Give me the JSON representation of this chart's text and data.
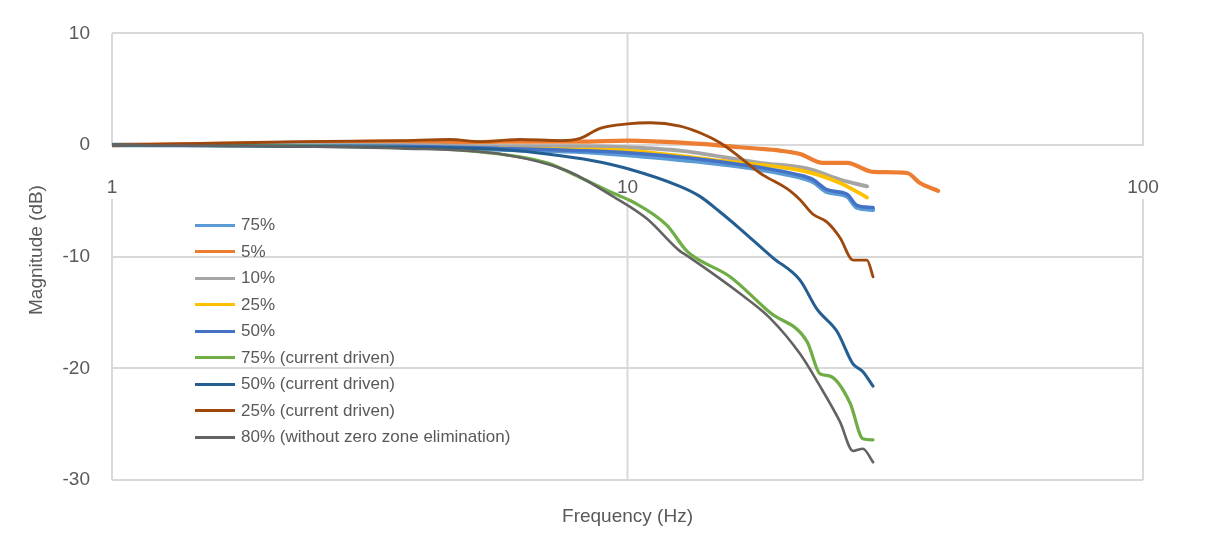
{
  "chart_data": {
    "type": "line",
    "xlabel": "Frequency (Hz)",
    "ylabel": "Magnitude (dB)",
    "log": "x",
    "xlim": [
      1,
      100
    ],
    "xticks": [
      1,
      10,
      100
    ],
    "ylim": [
      -30,
      10
    ],
    "yticks": [
      -30,
      -20,
      -10,
      0,
      10
    ],
    "grid": true,
    "legend": "bottom left",
    "line_style": "solid",
    "series": [
      {
        "name": "75%",
        "color": "#5b9bd5",
        "x": [
          1,
          3.62,
          5.66,
          8.09,
          10,
          15.12,
          21.61,
          22.9,
          24.38,
          26.66,
          27.87,
          29.94
        ],
        "values": [
          0,
          -0.1,
          -0.4,
          -0.6,
          -0.9,
          -1.7,
          -2.9,
          -3.3,
          -4.2,
          -4.6,
          -5.6,
          -5.8
        ]
      },
      {
        "name": "5%",
        "color": "#ed7d31",
        "x": [
          1,
          2.32,
          3.62,
          4.53,
          5.66,
          8.09,
          10,
          11.54,
          13.82,
          16.53,
          19.76,
          21.61,
          23.94,
          26.66,
          29.94,
          34.85,
          36.93,
          40.03
        ],
        "values": [
          0,
          0.2,
          0.3,
          0.2,
          0.3,
          0.3,
          0.4,
          0.3,
          0.1,
          -0.2,
          -0.5,
          -0.8,
          -1.6,
          -1.6,
          -2.4,
          -2.5,
          -3.4,
          -4.1
        ]
      },
      {
        "name": "10%",
        "color": "#a5a5a5",
        "x": [
          1,
          3.62,
          5.66,
          8.09,
          10,
          12.64,
          18.07,
          22.3,
          25.84,
          29.15
        ],
        "values": [
          0,
          0,
          -0.1,
          -0.1,
          -0.2,
          -0.5,
          -1.6,
          -2.1,
          -3.1,
          -3.7
        ]
      },
      {
        "name": "25%",
        "color": "#ffc000",
        "x": [
          5.66,
          8.09,
          10,
          15.12,
          22.3,
          25.84,
          29.15
        ],
        "values": [
          -0.3,
          -0.4,
          -0.5,
          -1.4,
          -2.4,
          -3.4,
          -4.7
        ]
      },
      {
        "name": "50%",
        "color": "#4472c4",
        "x": [
          1,
          3.62,
          5.66,
          8.09,
          10,
          15.12,
          21.61,
          22.9,
          24.38,
          26.66,
          27.87,
          29.94
        ],
        "values": [
          0,
          -0.1,
          -0.3,
          -0.5,
          -0.7,
          -1.5,
          -2.7,
          -3.1,
          -4.0,
          -4.4,
          -5.4,
          -5.6
        ]
      },
      {
        "name": "75% (current driven)",
        "color": "#70ad47",
        "x": [
          1,
          3.62,
          5.66,
          6.98,
          8.09,
          9.37,
          10.25,
          11.93,
          13.04,
          15.81,
          18.9,
          22.3,
          23.63,
          24.71,
          27.02,
          28.62,
          29.94
        ],
        "values": [
          0,
          -0.2,
          -0.8,
          -1.6,
          -2.9,
          -4.3,
          -5.1,
          -7.2,
          -9.5,
          -11.8,
          -15,
          -17.6,
          -20.5,
          -20.7,
          -23.1,
          -26.3,
          -26.4
        ]
      },
      {
        "name": "50% (current driven)",
        "color": "#255e91",
        "x": [
          1,
          3.62,
          5.66,
          6.98,
          8.57,
          9.98,
          12.64,
          13.82,
          15.12,
          16.53,
          19.15,
          21.61,
          23.31,
          25.5,
          27.38,
          28.62,
          29.94
        ],
        "values": [
          0,
          -0.2,
          -0.4,
          -0.8,
          -1.4,
          -2.1,
          -3.7,
          -4.6,
          -6.0,
          -7.5,
          -10.1,
          -12.1,
          -14.7,
          -16.7,
          -19.6,
          -20.3,
          -21.6
        ]
      },
      {
        "name": "25% (current driven)",
        "color": "#9e480e",
        "x": [
          1,
          2.32,
          3.62,
          4.53,
          5.18,
          6.19,
          7.4,
          8.09,
          8.85,
          10,
          11.06,
          12.64,
          13.82,
          15.12,
          16.53,
          18.07,
          20.67,
          21.61,
          22.9,
          24.38,
          25.84,
          27.38,
          29.15,
          29.94
        ],
        "values": [
          0,
          0.3,
          0.4,
          0.5,
          0.3,
          0.5,
          0.4,
          0.6,
          1.5,
          1.9,
          2.0,
          1.7,
          1.1,
          0.2,
          -1.1,
          -2.5,
          -4.1,
          -4.9,
          -6.2,
          -6.9,
          -8.3,
          -10.3,
          -10.3,
          -11.8
        ]
      },
      {
        "name": "80% (without zero zone elimination)",
        "color": "#636363",
        "x": [
          1,
          3.62,
          5.66,
          7.63,
          9.37,
          10.91,
          12.64,
          13.04,
          16.75,
          18.9,
          21.61,
          23.63,
          25.84,
          27.38,
          28.62,
          29.94
        ],
        "values": [
          0,
          -0.3,
          -0.8,
          -2.3,
          -4.6,
          -6.6,
          -9.5,
          -9.9,
          -13.5,
          -15.5,
          -18.7,
          -21.6,
          -24.8,
          -27.4,
          -27.2,
          -28.4
        ]
      }
    ]
  }
}
